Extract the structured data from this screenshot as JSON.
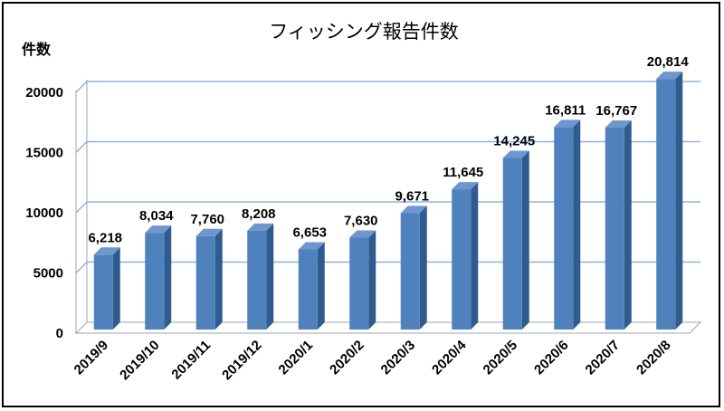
{
  "chart_data": {
    "type": "bar",
    "title": "フィッシング報告件数",
    "ylabel": "件数",
    "xlabel": "",
    "categories": [
      "2019/9",
      "2019/10",
      "2019/11",
      "2019/12",
      "2020/1",
      "2020/2",
      "2020/3",
      "2020/4",
      "2020/5",
      "2020/6",
      "2020/7",
      "2020/8"
    ],
    "values": [
      6218,
      8034,
      7760,
      8208,
      6653,
      7630,
      9671,
      11645,
      14245,
      16811,
      16767,
      20814
    ],
    "data_labels": [
      "6,218",
      "8,034",
      "7,760",
      "8,208",
      "6,653",
      "7,630",
      "9,671",
      "11,645",
      "14,245",
      "16,811",
      "16,767",
      "20,814"
    ],
    "yticks": [
      0,
      5000,
      10000,
      15000,
      20000
    ],
    "ylim": [
      0,
      20000
    ],
    "grid": true,
    "legend": "none",
    "colors": {
      "bar_front": "#4f81bd",
      "bar_side": "#2e5c8f",
      "bar_top": "#6f97cf",
      "gridline": "#8db3e2"
    }
  }
}
